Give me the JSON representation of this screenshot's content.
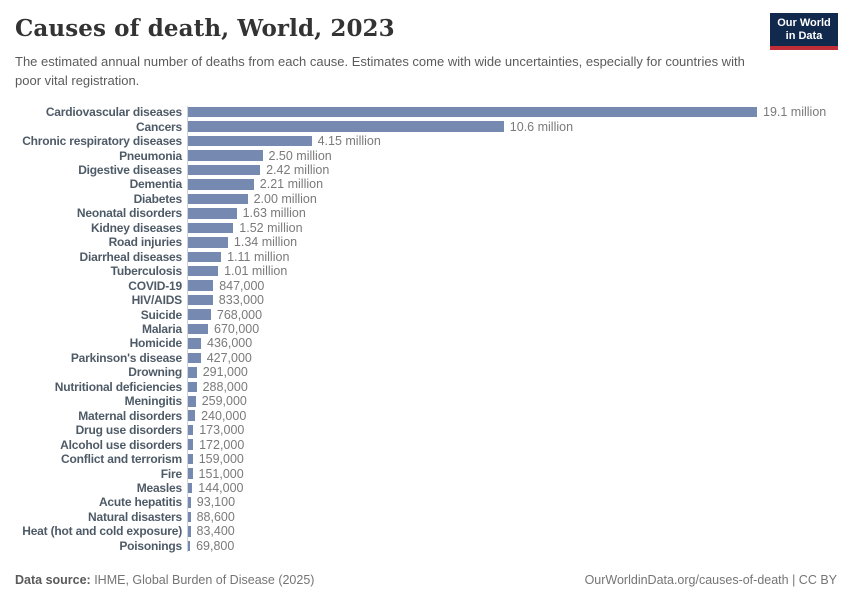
{
  "header": {
    "title": "Causes of death, World, 2023",
    "subtitle": "The estimated annual number of deaths from each cause. Estimates come with wide uncertainties, especially for countries with poor vital registration.",
    "logo_line1": "Our World",
    "logo_line2": "in Data"
  },
  "chart_data": {
    "type": "bar",
    "orientation": "horizontal",
    "title": "Causes of death, World, 2023",
    "xlabel": "",
    "ylabel": "",
    "xlim_millions": [
      0,
      19.1
    ],
    "grid": false,
    "legend": "none",
    "bar_color": "#7589b1",
    "categories": [
      "Cardiovascular diseases",
      "Cancers",
      "Chronic respiratory diseases",
      "Pneumonia",
      "Digestive diseases",
      "Dementia",
      "Diabetes",
      "Neonatal disorders",
      "Kidney diseases",
      "Road injuries",
      "Diarrheal diseases",
      "Tuberculosis",
      "COVID-19",
      "HIV/AIDS",
      "Suicide",
      "Malaria",
      "Homicide",
      "Parkinson's disease",
      "Drowning",
      "Nutritional deficiencies",
      "Meningitis",
      "Maternal disorders",
      "Drug use disorders",
      "Alcohol use disorders",
      "Conflict and terrorism",
      "Fire",
      "Measles",
      "Acute hepatitis",
      "Natural disasters",
      "Heat (hot and cold exposure)",
      "Poisonings"
    ],
    "values_millions": [
      19.1,
      10.6,
      4.15,
      2.5,
      2.42,
      2.21,
      2.0,
      1.63,
      1.52,
      1.34,
      1.11,
      1.01,
      0.847,
      0.833,
      0.768,
      0.67,
      0.436,
      0.427,
      0.291,
      0.288,
      0.259,
      0.24,
      0.173,
      0.172,
      0.159,
      0.151,
      0.144,
      0.0931,
      0.0886,
      0.0834,
      0.0698
    ],
    "value_labels": [
      "19.1 million",
      "10.6 million",
      "4.15 million",
      "2.50 million",
      "2.42 million",
      "2.21 million",
      "2.00 million",
      "1.63 million",
      "1.52 million",
      "1.34 million",
      "1.11 million",
      "1.01 million",
      "847,000",
      "833,000",
      "768,000",
      "670,000",
      "436,000",
      "427,000",
      "291,000",
      "288,000",
      "259,000",
      "240,000",
      "173,000",
      "172,000",
      "159,000",
      "151,000",
      "144,000",
      "93,100",
      "88,600",
      "83,400",
      "69,800"
    ]
  },
  "footer": {
    "source_label": "Data source:",
    "source_text": " IHME, Global Burden of Disease (2025)",
    "attribution": "OurWorldinData.org/causes-of-death | CC BY"
  }
}
